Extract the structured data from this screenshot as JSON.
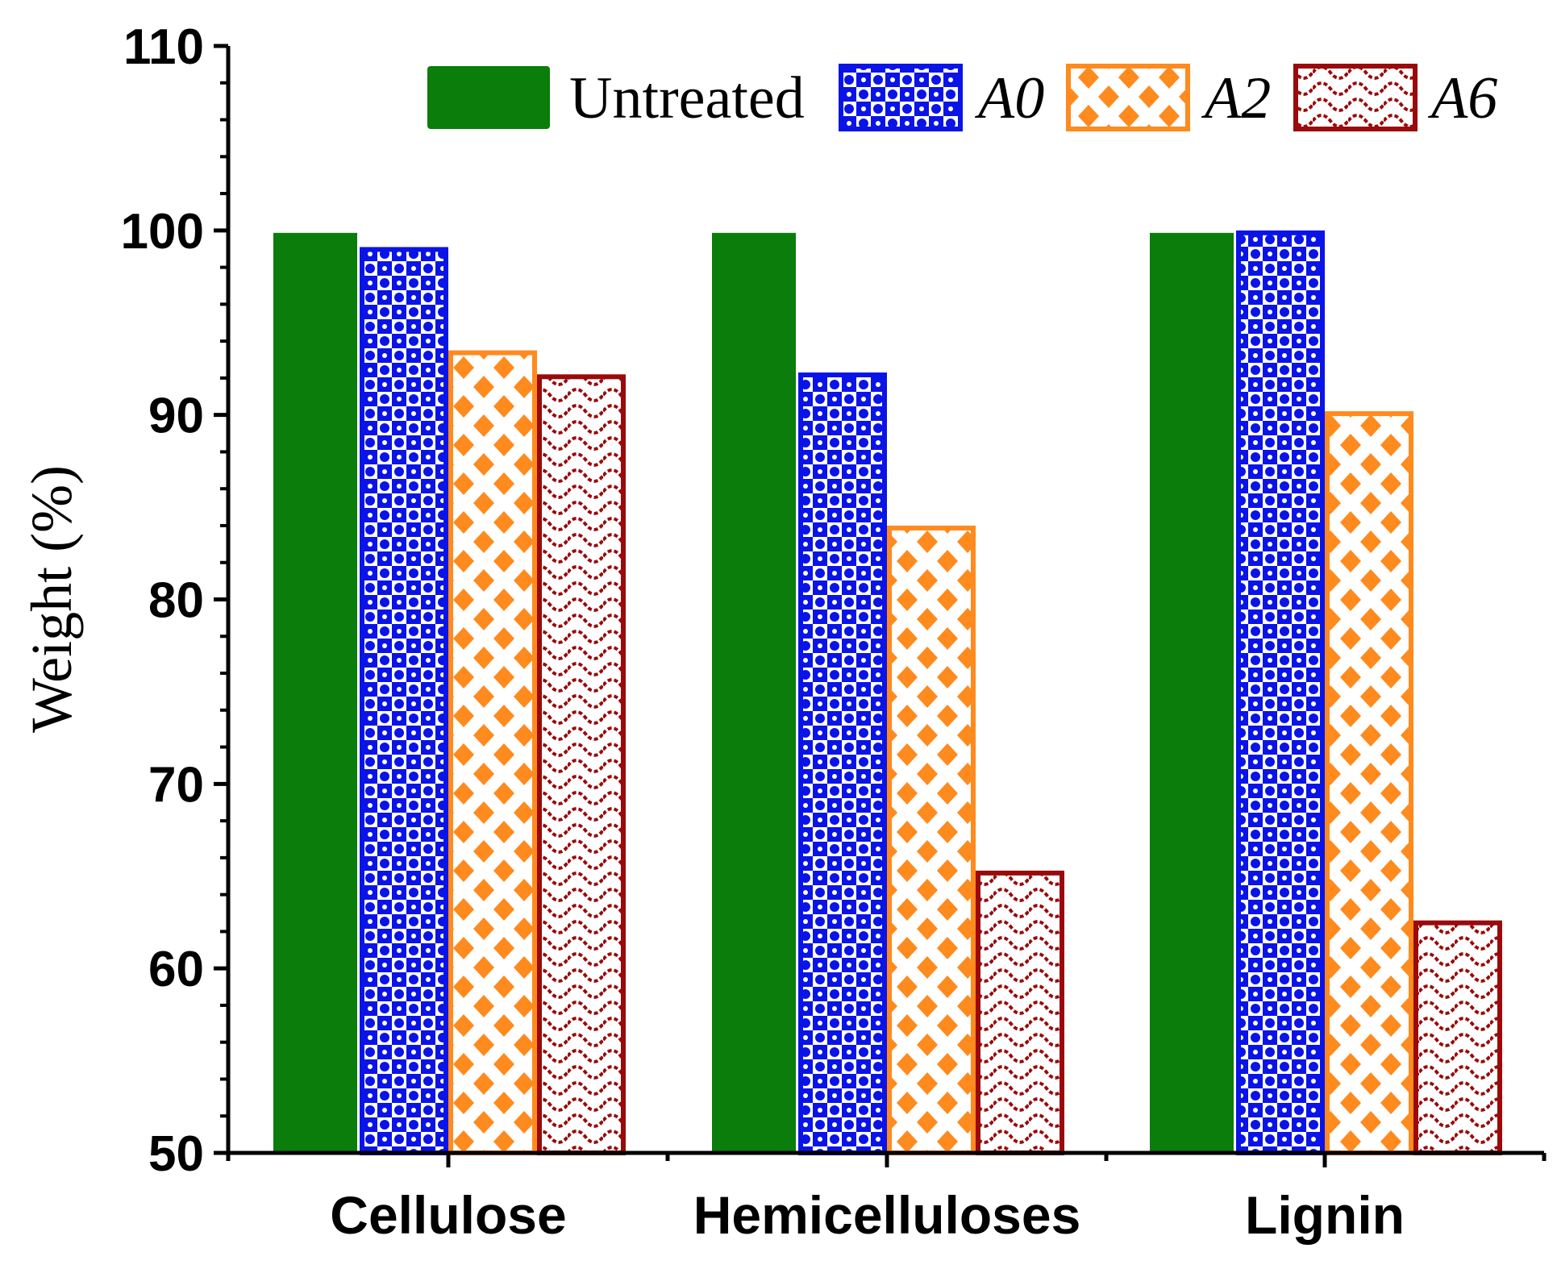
{
  "chart_data": {
    "type": "bar",
    "categories": [
      "Cellulose",
      "Hemicelluloses",
      "Lignin"
    ],
    "series": [
      {
        "name": "Untreated",
        "values": [
          100,
          100,
          100
        ],
        "color": "#0a7d0a",
        "pattern": "solid",
        "italic": false
      },
      {
        "name": "A0",
        "values": [
          99.1,
          92.3,
          100
        ],
        "color": "#0a14e6",
        "pattern": "checker-circles",
        "italic": true
      },
      {
        "name": "A2",
        "values": [
          93.5,
          84.0,
          90.2
        ],
        "color": "#ff8a1e",
        "pattern": "diamonds",
        "italic": true
      },
      {
        "name": "A6",
        "values": [
          92.2,
          65.3,
          62.6
        ],
        "color": "#9a0a0a",
        "pattern": "waves",
        "italic": true
      }
    ],
    "ylabel": "Weight (%)",
    "xlabel": "",
    "ylim": [
      50,
      110
    ],
    "yticks": [
      50,
      60,
      70,
      80,
      90,
      100,
      110
    ],
    "grid": false,
    "legend_position": "top-right"
  }
}
